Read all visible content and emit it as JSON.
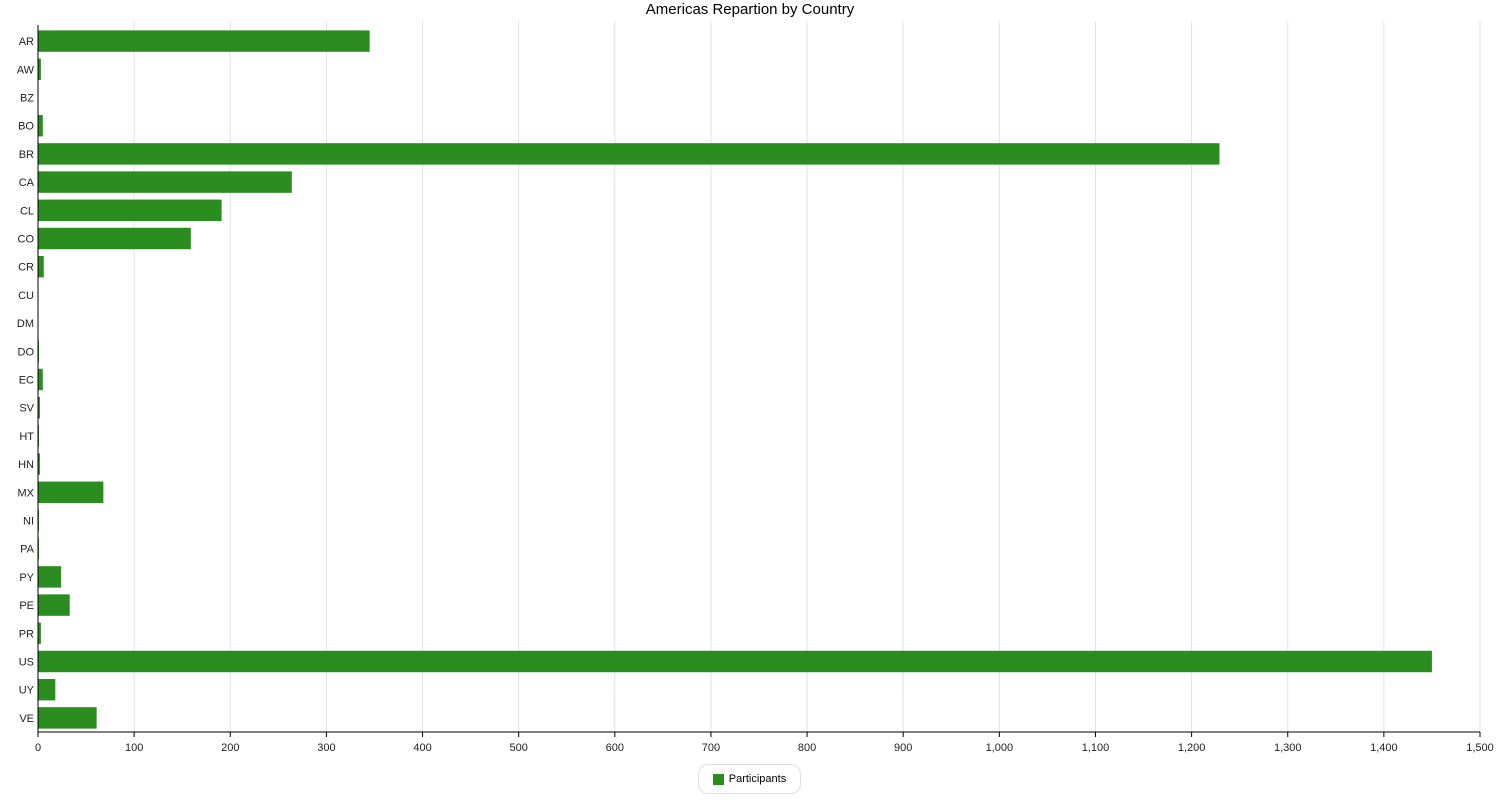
{
  "title": "Americas Repartion by Country",
  "legend": {
    "label": "Participants",
    "color": "#2b8c1f"
  },
  "chart_data": {
    "type": "bar",
    "orientation": "horizontal",
    "title": "Americas Repartion by Country",
    "categories": [
      "AR",
      "AW",
      "BZ",
      "BO",
      "BR",
      "CA",
      "CL",
      "CO",
      "CR",
      "CU",
      "DM",
      "DO",
      "EC",
      "SV",
      "HT",
      "HN",
      "MX",
      "NI",
      "PA",
      "PY",
      "PE",
      "PR",
      "US",
      "UY",
      "VE"
    ],
    "series": [
      {
        "name": "Participants",
        "color": "#2b8c1f",
        "values": [
          345,
          3,
          0,
          5,
          1229,
          264,
          191,
          159,
          6,
          0,
          0,
          1,
          5,
          2,
          1,
          2,
          68,
          1,
          1,
          24,
          33,
          3,
          1450,
          18,
          61
        ]
      }
    ],
    "xlim": [
      0,
      1500
    ],
    "xticks": [
      0,
      100,
      200,
      300,
      400,
      500,
      600,
      700,
      800,
      900,
      1000,
      1100,
      1200,
      1300,
      1400,
      1500
    ],
    "xtick_labels": [
      "0",
      "100",
      "200",
      "300",
      "400",
      "500",
      "600",
      "700",
      "800",
      "900",
      "1,000",
      "1,100",
      "1,200",
      "1,300",
      "1,400",
      "1,500"
    ],
    "grid": "vertical",
    "legend_position": "bottom-center"
  }
}
